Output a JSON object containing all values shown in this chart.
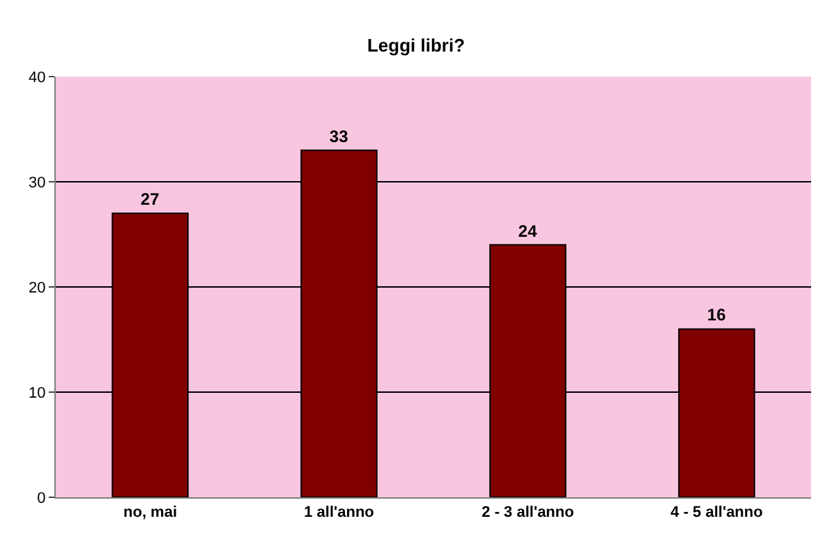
{
  "chart_data": {
    "type": "bar",
    "title": "Leggi libri?",
    "categories": [
      "no, mai",
      "1 all'anno",
      "2 - 3 all'anno",
      "4 - 5 all'anno"
    ],
    "values": [
      27,
      33,
      24,
      16
    ],
    "color": "#800000",
    "ylim": [
      0,
      40
    ],
    "yticks": [
      0,
      10,
      20,
      30,
      40
    ],
    "grid": "y",
    "data_labels": true
  }
}
